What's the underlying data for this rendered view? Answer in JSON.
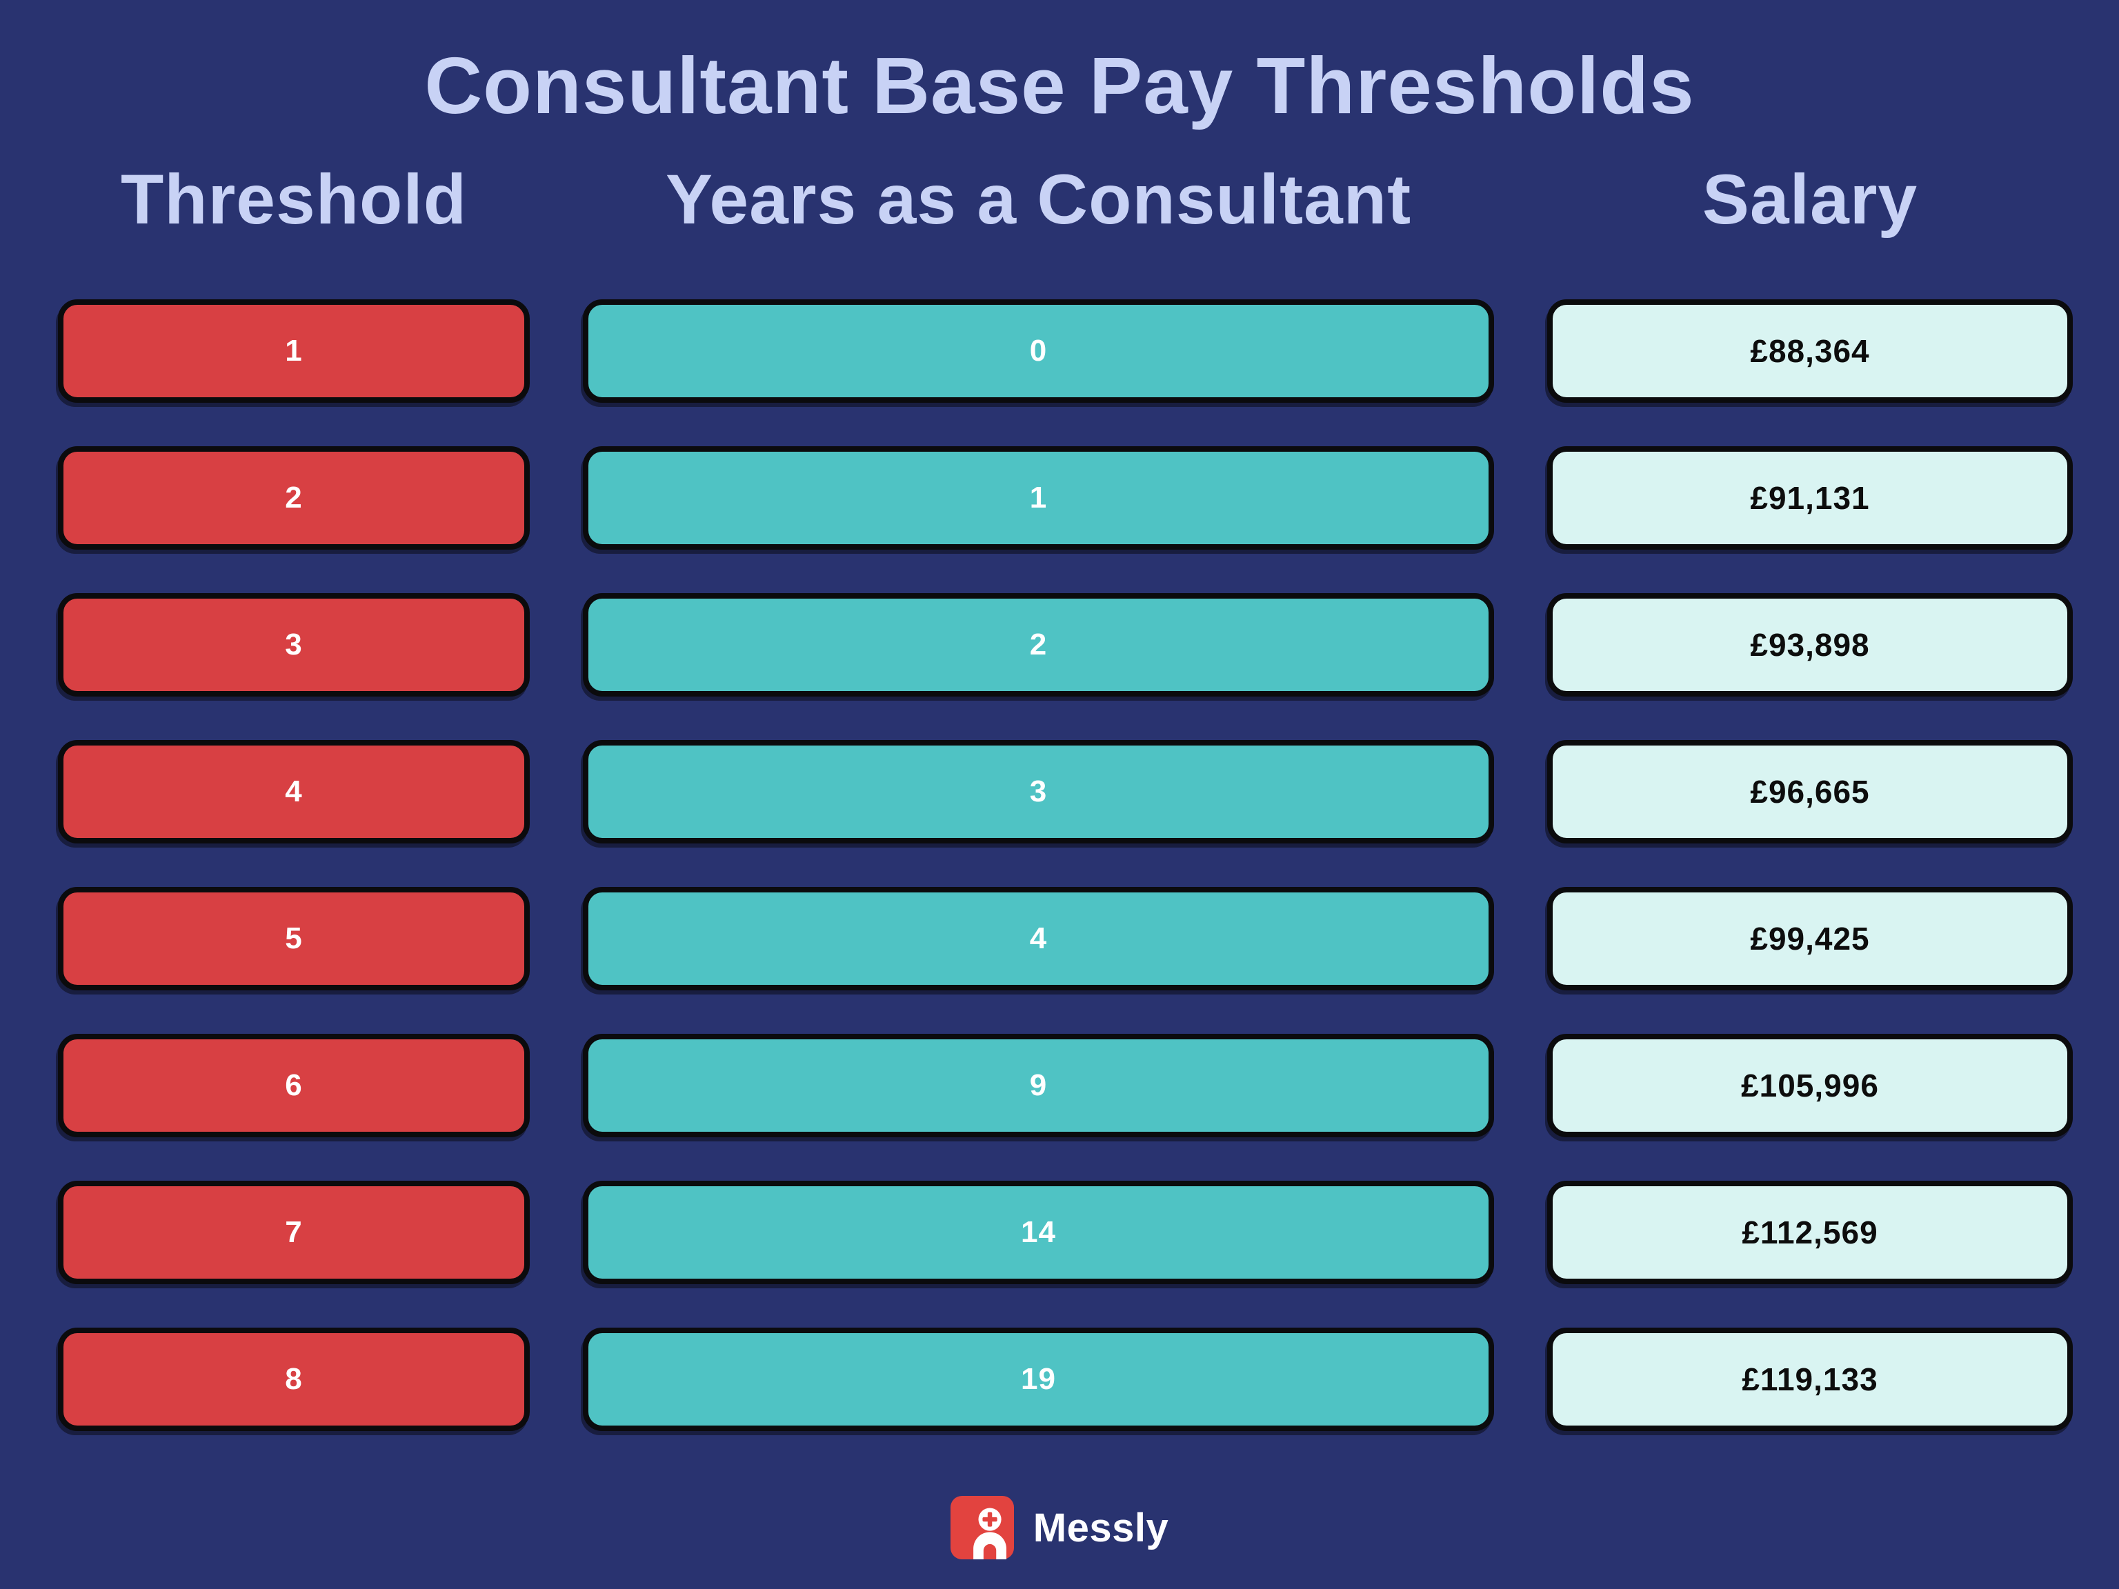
{
  "title": "Consultant Base Pay Thresholds",
  "columns": [
    {
      "key": "threshold",
      "label": "Threshold"
    },
    {
      "key": "years",
      "label": "Years as a Consultant"
    },
    {
      "key": "salary",
      "label": "Salary"
    }
  ],
  "rows": [
    {
      "threshold": "1",
      "years": "0",
      "salary": "£88,364"
    },
    {
      "threshold": "2",
      "years": "1",
      "salary": "£91,131"
    },
    {
      "threshold": "3",
      "years": "2",
      "salary": "£93,898"
    },
    {
      "threshold": "4",
      "years": "3",
      "salary": "£96,665"
    },
    {
      "threshold": "5",
      "years": "4",
      "salary": "£99,425"
    },
    {
      "threshold": "6",
      "years": "9",
      "salary": "£105,996"
    },
    {
      "threshold": "7",
      "years": "14",
      "salary": "£112,569"
    },
    {
      "threshold": "8",
      "years": "19",
      "salary": "£119,133"
    }
  ],
  "footer": {
    "brand": "Messly"
  },
  "colors": {
    "bg": "#293370",
    "heading": "#c8d2f5",
    "red": "#d84043",
    "teal": "#4fc3c4",
    "cyan": "#d9f4f2",
    "ink": "#0b0b0d",
    "logo-red": "#e2433f"
  },
  "chart_data": {
    "type": "table",
    "title": "Consultant Base Pay Thresholds",
    "columns": [
      "Threshold",
      "Years as a Consultant",
      "Salary"
    ],
    "rows": [
      [
        1,
        0,
        "£88,364"
      ],
      [
        2,
        1,
        "£91,131"
      ],
      [
        3,
        2,
        "£93,898"
      ],
      [
        4,
        3,
        "£96,665"
      ],
      [
        5,
        4,
        "£99,425"
      ],
      [
        6,
        9,
        "£105,996"
      ],
      [
        7,
        14,
        "£112,569"
      ],
      [
        8,
        19,
        "£119,133"
      ]
    ],
    "layout_hints": {
      "threshold_cell_color": "#d84043",
      "years_cell_color": "#4fc3c4",
      "salary_cell_color": "#d9f4f2",
      "background": "#293370"
    }
  }
}
